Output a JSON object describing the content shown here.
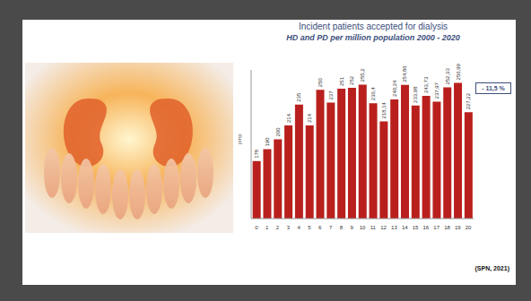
{
  "chart_data": {
    "type": "bar",
    "title": "Incident patients accepted for dialysis",
    "subtitle": "HD and PD per million population 2000 - 2020",
    "y_label": "pmp",
    "categories": [
      "0",
      "1",
      "2",
      "3",
      "4",
      "5",
      "6",
      "7",
      "8",
      "9",
      "10",
      "11",
      "12",
      "13",
      "14",
      "15",
      "16",
      "17",
      "18",
      "19",
      "20"
    ],
    "values": [
      178,
      190,
      200,
      214,
      235,
      214,
      250,
      237,
      251,
      252,
      255.2,
      236.4,
      218.14,
      240.24,
      254.86,
      233.98,
      243.73,
      237.97,
      252.33,
      256.99,
      227.22
    ],
    "value_labels": [
      "178",
      "190",
      "200",
      "214",
      "235",
      "214",
      "250",
      "237",
      "251",
      "252",
      "255,2",
      "236,4",
      "218,14",
      "240,24",
      "254,86",
      "233,98",
      "243,73",
      "237,97",
      "252,33",
      "256,99",
      "227,22"
    ],
    "color": "#b9201d",
    "ylim": [
      120,
      270
    ],
    "tick_labels": "x",
    "data_labels": true,
    "annotation": "- 11,5 %",
    "source": "(SPN, 2021)"
  }
}
